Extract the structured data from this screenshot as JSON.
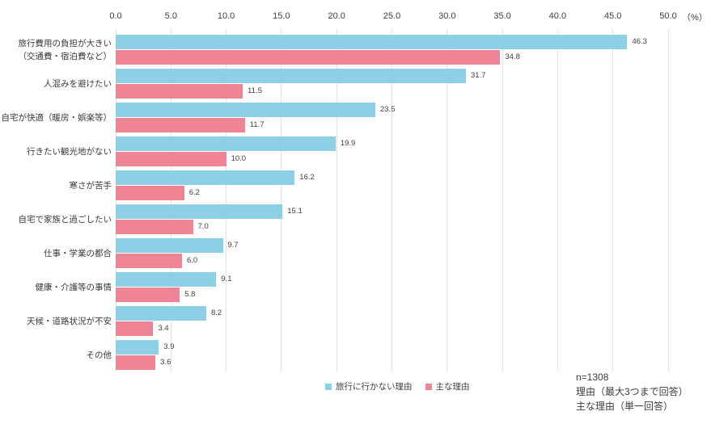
{
  "chart_data": {
    "type": "bar",
    "orientation": "horizontal",
    "title": "",
    "unit_label": "（%）",
    "x_axis": {
      "min": 0,
      "max": 50,
      "tick_values": [
        0,
        5,
        10,
        15,
        20,
        25,
        30,
        35,
        40,
        45,
        50
      ],
      "tick_labels": [
        "0.0",
        "5.0",
        "10.0",
        "15.0",
        "20.0",
        "25.0",
        "30.0",
        "35.0",
        "40.0",
        "45.0",
        "50.0"
      ]
    },
    "categories": [
      {
        "key": "travel-cost",
        "lines": [
          "旅行費用の負担が大きい",
          "（交通費・宿泊費など）"
        ]
      },
      {
        "key": "avoid-crowds",
        "lines": [
          "人混みを避けたい"
        ]
      },
      {
        "key": "home-comfort",
        "lines": [
          "自宅が快適（暖房・娯楽等）"
        ]
      },
      {
        "key": "no-destination",
        "lines": [
          "行きたい観光地がない"
        ]
      },
      {
        "key": "dislike-cold",
        "lines": [
          "寒さが苦手"
        ]
      },
      {
        "key": "family-time",
        "lines": [
          "自宅で家族と過ごしたい"
        ]
      },
      {
        "key": "work-school",
        "lines": [
          "仕事・学業の都合"
        ]
      },
      {
        "key": "health-care",
        "lines": [
          "健康・介護等の事情"
        ]
      },
      {
        "key": "weather-roads",
        "lines": [
          "天候・道路状況が不安"
        ]
      },
      {
        "key": "other",
        "lines": [
          "その他"
        ]
      }
    ],
    "series": [
      {
        "key": "no-travel-reason",
        "name": "旅行に行かない理由",
        "color": "#8DCFE5",
        "values": [
          46.3,
          31.7,
          23.5,
          19.9,
          16.2,
          15.1,
          9.7,
          9.1,
          8.2,
          3.9
        ],
        "value_labels": [
          "46.3",
          "31.7",
          "23.5",
          "19.9",
          "16.2",
          "15.1",
          "9.7",
          "9.1",
          "8.2",
          "3.9"
        ]
      },
      {
        "key": "main-reason",
        "name": "主な理由",
        "color": "#EF8497",
        "values": [
          34.8,
          11.5,
          11.7,
          10.0,
          6.2,
          7.0,
          6.0,
          5.8,
          3.4,
          3.6
        ],
        "value_labels": [
          "34.8",
          "11.5",
          "11.7",
          "10.0",
          "6.2",
          "7.0",
          "6.0",
          "5.8",
          "3.4",
          "3.6"
        ]
      }
    ],
    "grid": true,
    "grid_color": "#E2E2E2",
    "legend_position": "bottom"
  },
  "notes": {
    "sample_size": "n=1308",
    "reason_note": "理由（最大3つまで回答）",
    "main_reason_note": "主な理由（単一回答）"
  },
  "colors": {
    "background": "#FFFFFF",
    "axis_text": "#404040",
    "category_text": "#383838"
  }
}
